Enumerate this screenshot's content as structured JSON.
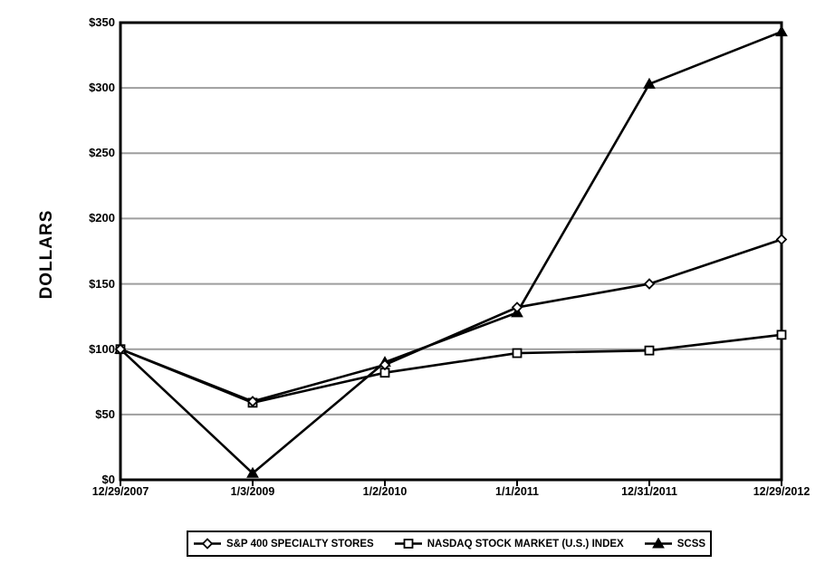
{
  "chart_data": {
    "type": "line",
    "title": "",
    "ylabel": "DOLLARS",
    "xlabel": "",
    "categories": [
      "12/29/2007",
      "1/3/2009",
      "1/2/2010",
      "1/1/2011",
      "12/31/2011",
      "12/29/2012"
    ],
    "y_ticks": [
      {
        "label": "$0",
        "value": 0
      },
      {
        "label": "$50",
        "value": 50
      },
      {
        "label": "$100",
        "value": 100
      },
      {
        "label": "$150",
        "value": 150
      },
      {
        "label": "$200",
        "value": 200
      },
      {
        "label": "$250",
        "value": 250
      },
      {
        "label": "$300",
        "value": 300
      },
      {
        "label": "$350",
        "value": 350
      }
    ],
    "ylim": [
      0,
      350
    ],
    "grid": "horizontal-only",
    "legend_position": "bottom",
    "colors": {
      "line": "#000000",
      "grid": "#9e9e9e",
      "background": "#ffffff",
      "text": "#000000"
    },
    "series": [
      {
        "name": "S&P 400 SPECIALTY STORES",
        "marker": "diamond-open",
        "values": [
          100,
          60,
          88,
          132,
          150,
          184
        ]
      },
      {
        "name": "NASDAQ STOCK MARKET (U.S.) INDEX",
        "marker": "square-open",
        "values": [
          100,
          59,
          82,
          97,
          99,
          111
        ]
      },
      {
        "name": "SCSS",
        "marker": "triangle-filled",
        "values": [
          100,
          5,
          90,
          128,
          303,
          343
        ]
      }
    ]
  }
}
